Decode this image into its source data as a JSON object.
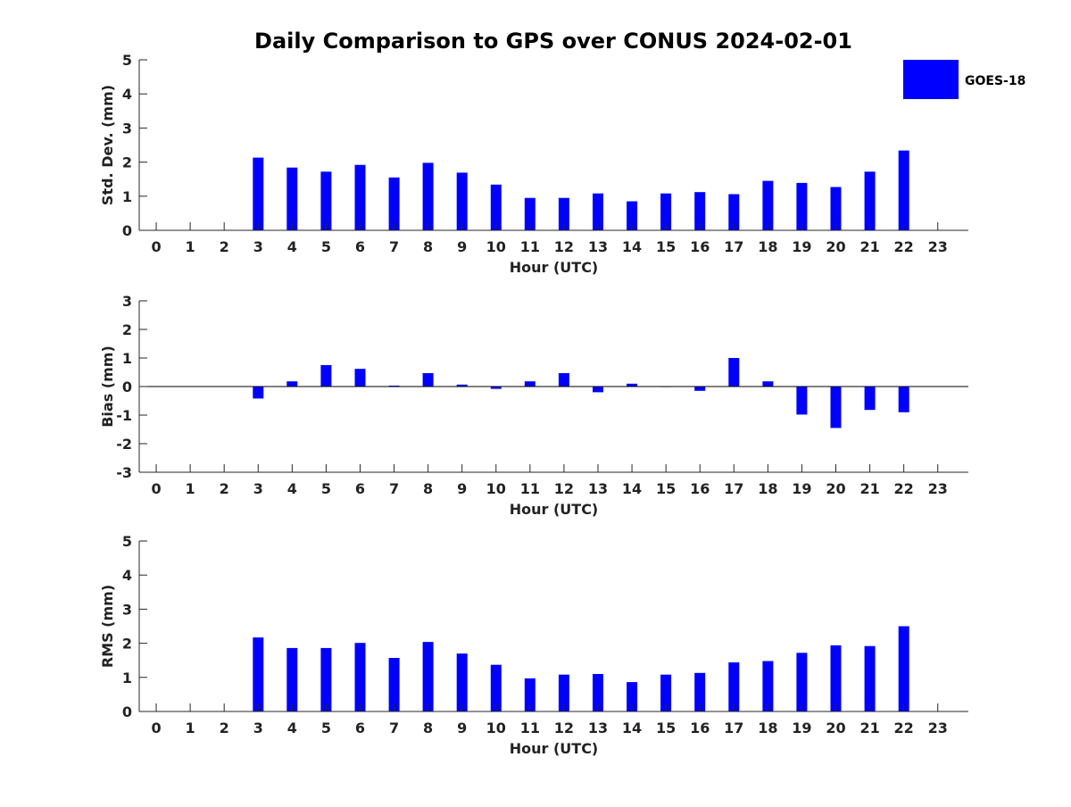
{
  "title": "Daily Comparison to GPS over CONUS 2024-02-01",
  "legend": {
    "label": "GOES-18",
    "color": "#0000ff"
  },
  "chart_data": [
    {
      "type": "bar",
      "ylabel": "Std. Dev. (mm)",
      "xlabel": "Hour (UTC)",
      "ylim": [
        0,
        5
      ],
      "yticks": [
        0,
        1,
        2,
        3,
        4,
        5
      ],
      "xlim": [
        -0.5,
        23.9
      ],
      "categories": [
        0,
        1,
        2,
        3,
        4,
        5,
        6,
        7,
        8,
        9,
        10,
        11,
        12,
        13,
        14,
        15,
        16,
        17,
        18,
        19,
        20,
        21,
        22,
        23
      ],
      "series": [
        {
          "name": "GOES-18",
          "values": [
            null,
            null,
            null,
            2.13,
            1.84,
            1.72,
            1.92,
            1.55,
            1.98,
            1.69,
            1.34,
            0.95,
            0.95,
            1.08,
            0.85,
            1.08,
            1.12,
            1.06,
            1.45,
            1.39,
            1.27,
            1.72,
            2.34,
            null
          ]
        }
      ]
    },
    {
      "type": "bar",
      "ylabel": "Bias (mm)",
      "xlabel": "Hour (UTC)",
      "ylim": [
        -3,
        3
      ],
      "yticks": [
        -3,
        -2,
        -1,
        0,
        1,
        2,
        3
      ],
      "xlim": [
        -0.5,
        23.9
      ],
      "zero_line": true,
      "categories": [
        0,
        1,
        2,
        3,
        4,
        5,
        6,
        7,
        8,
        9,
        10,
        11,
        12,
        13,
        14,
        15,
        16,
        17,
        18,
        19,
        20,
        21,
        22,
        23
      ],
      "series": [
        {
          "name": "GOES-18",
          "values": [
            null,
            null,
            null,
            -0.42,
            0.18,
            0.75,
            0.62,
            0.03,
            0.47,
            0.07,
            -0.08,
            0.18,
            0.47,
            -0.2,
            0.1,
            -0.02,
            -0.15,
            1.0,
            0.18,
            -0.98,
            -1.45,
            -0.82,
            -0.9,
            null
          ]
        }
      ]
    },
    {
      "type": "bar",
      "ylabel": "RMS (mm)",
      "xlabel": "Hour (UTC)",
      "ylim": [
        0,
        5
      ],
      "yticks": [
        0,
        1,
        2,
        3,
        4,
        5
      ],
      "xlim": [
        -0.5,
        23.9
      ],
      "categories": [
        0,
        1,
        2,
        3,
        4,
        5,
        6,
        7,
        8,
        9,
        10,
        11,
        12,
        13,
        14,
        15,
        16,
        17,
        18,
        19,
        20,
        21,
        22,
        23
      ],
      "series": [
        {
          "name": "GOES-18",
          "values": [
            null,
            null,
            null,
            2.17,
            1.86,
            1.86,
            2.01,
            1.57,
            2.04,
            1.7,
            1.37,
            0.97,
            1.08,
            1.1,
            0.86,
            1.08,
            1.13,
            1.44,
            1.48,
            1.72,
            1.94,
            1.92,
            2.5,
            null
          ]
        }
      ]
    }
  ]
}
